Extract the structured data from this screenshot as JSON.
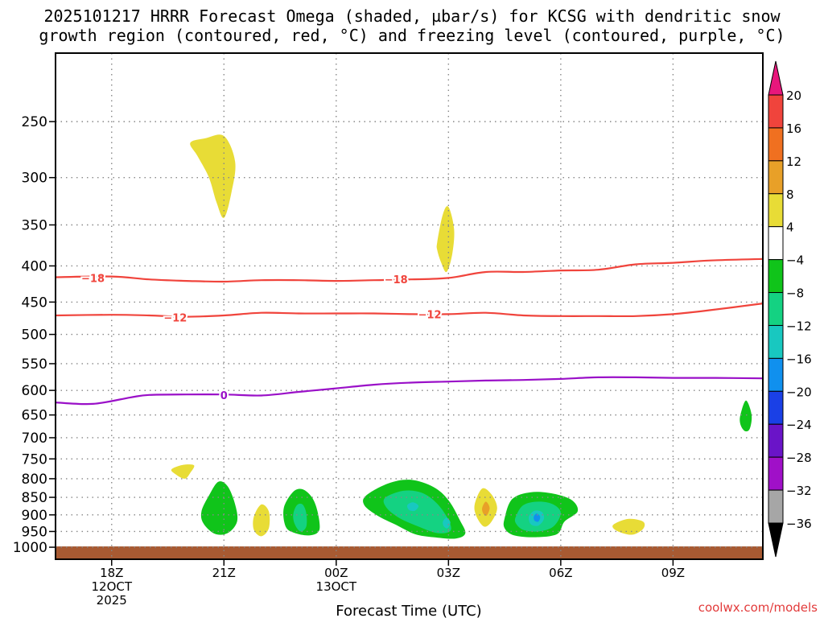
{
  "title_line1": "2025101217 HRRR Forecast Omega (shaded, µbar/s) for KCSG with dendritic snow",
  "title_line2": "growth region (contoured, red, °C) and freezing level (contoured, purple, °C)",
  "credit": "coolwx.com/models",
  "chart_data": {
    "type": "heatmap",
    "title": "2025101217 HRRR Forecast Omega (shaded, µbar/s) for KCSG with dendritic snow growth region (contoured, red, °C) and freezing level (contoured, purple, °C)",
    "xlabel": "Forecast Time (UTC)",
    "ylabel": "",
    "x_range_hours": [
      16.5,
      35.4
    ],
    "y_axis": "pressure (hPa), log scale, inverted",
    "y_range": [
      200,
      1040
    ],
    "grid": true,
    "y_ticks": [
      250,
      300,
      350,
      400,
      450,
      500,
      550,
      600,
      650,
      700,
      750,
      800,
      850,
      900,
      950,
      1000
    ],
    "x_ticks": [
      {
        "hour": 18,
        "lines": [
          "18Z",
          "12OCT",
          "2025"
        ]
      },
      {
        "hour": 21,
        "lines": [
          "21Z"
        ]
      },
      {
        "hour": 24,
        "lines": [
          "00Z",
          "13OCT"
        ]
      },
      {
        "hour": 27,
        "lines": [
          "03Z"
        ]
      },
      {
        "hour": 30,
        "lines": [
          "06Z"
        ]
      },
      {
        "hour": 33,
        "lines": [
          "09Z"
        ]
      }
    ],
    "colorbar": {
      "labels": [
        "20",
        "16",
        "12",
        "8",
        "4",
        "−4",
        "−8",
        "−12",
        "−16",
        "−20",
        "−24",
        "−28",
        "−32",
        "−36"
      ],
      "top_arrow_color": "#e8177c",
      "bins": [
        {
          "color": "#f0443c"
        },
        {
          "color": "#f07020"
        },
        {
          "color": "#e8a028"
        },
        {
          "color": "#e8dc36"
        },
        {
          "color": "#ffffff"
        },
        {
          "color": "#10c41a"
        },
        {
          "color": "#14d282"
        },
        {
          "color": "#18c8c0"
        },
        {
          "color": "#1090ee"
        },
        {
          "color": "#1a40e6"
        },
        {
          "color": "#6a14c8"
        },
        {
          "color": "#a010c8"
        },
        {
          "color": "#a6a6a6"
        }
      ],
      "bottom_arrow_color": "#000000"
    },
    "terrain": {
      "pressure": 1000,
      "color": "#a85a32"
    },
    "series": [
      {
        "name": "-18",
        "color": "#f0443c",
        "x": [
          16.5,
          18,
          19,
          20,
          21,
          22,
          23,
          24,
          25,
          26,
          27,
          28,
          29,
          30,
          31,
          32,
          33,
          34,
          35.4
        ],
        "y": [
          415,
          414,
          418,
          420,
          421,
          419,
          419,
          420,
          419,
          418,
          416,
          408,
          408,
          406,
          405,
          398,
          396,
          393,
          391
        ]
      },
      {
        "name": "-12",
        "color": "#f0443c",
        "x": [
          16.5,
          18,
          19,
          20,
          21,
          22,
          23,
          24,
          25,
          26,
          27,
          28,
          29,
          30,
          31,
          32,
          33,
          34,
          35.4
        ],
        "y": [
          470,
          469,
          470,
          472,
          470,
          466,
          467,
          467,
          467,
          468,
          468,
          466,
          470,
          471,
          471,
          471,
          468,
          462,
          452
        ]
      },
      {
        "name": "0",
        "color": "#9a10c8",
        "x": [
          16.5,
          17.5,
          18.5,
          19,
          20,
          21,
          22,
          23,
          24,
          25,
          26,
          27,
          28,
          29,
          30,
          31,
          32,
          33,
          34,
          35.4
        ],
        "y": [
          624,
          627,
          614,
          609,
          608,
          608,
          610,
          603,
          596,
          589,
          585,
          583,
          581,
          580,
          578,
          575,
          575,
          576,
          576,
          577
        ]
      }
    ],
    "contour_labels": [
      {
        "text": "−18",
        "x": 17.5,
        "y": 416,
        "color": "#f0443c"
      },
      {
        "text": "−18",
        "x": 25.6,
        "y": 418,
        "color": "#f0443c"
      },
      {
        "text": "−12",
        "x": 19.7,
        "y": 473,
        "color": "#f0443c"
      },
      {
        "text": "−12",
        "x": 26.5,
        "y": 468,
        "color": "#f0443c"
      },
      {
        "text": "0",
        "x": 21,
        "y": 609,
        "color": "#9a10c8"
      }
    ],
    "blobs": [
      {
        "name": "ascent-21z-300",
        "color": "#e8dc36",
        "pts": [
          [
            20.1,
            268
          ],
          [
            20.5,
            264
          ],
          [
            21.0,
            262
          ],
          [
            21.3,
            285
          ],
          [
            21.2,
            315
          ],
          [
            21.0,
            342
          ],
          [
            20.8,
            325
          ],
          [
            20.6,
            300
          ],
          [
            20.3,
            280
          ]
        ]
      },
      {
        "name": "ascent-03z-370",
        "color": "#e8dc36",
        "pts": [
          [
            26.7,
            370
          ],
          [
            26.85,
            338
          ],
          [
            27.0,
            330
          ],
          [
            27.15,
            355
          ],
          [
            27.1,
            385
          ],
          [
            26.95,
            408
          ],
          [
            26.8,
            395
          ],
          [
            26.7,
            380
          ]
        ]
      },
      {
        "name": "ascent-20z-780",
        "color": "#e8dc36",
        "pts": [
          [
            19.6,
            776
          ],
          [
            19.9,
            765
          ],
          [
            20.2,
            766
          ],
          [
            20.1,
            785
          ],
          [
            19.95,
            800
          ],
          [
            19.7,
            788
          ]
        ]
      },
      {
        "name": "ascent-2130z-925",
        "color": "#e8dc36",
        "pts": [
          [
            21.8,
            905
          ],
          [
            22.0,
            870
          ],
          [
            22.2,
            890
          ],
          [
            22.2,
            940
          ],
          [
            22.0,
            965
          ],
          [
            21.8,
            945
          ]
        ]
      },
      {
        "name": "ascent-04z-880",
        "color": "#e8dc36",
        "pts": [
          [
            27.7,
            870
          ],
          [
            27.9,
            826
          ],
          [
            28.15,
            842
          ],
          [
            28.3,
            880
          ],
          [
            28.15,
            920
          ],
          [
            27.95,
            935
          ],
          [
            27.75,
            905
          ]
        ]
      },
      {
        "name": "ascent-04z-880-core",
        "color": "#e8a028",
        "pts": [
          [
            27.9,
            880
          ],
          [
            28.0,
            862
          ],
          [
            28.1,
            880
          ],
          [
            28.02,
            902
          ],
          [
            27.93,
            896
          ]
        ]
      },
      {
        "name": "ascent-08z-935",
        "color": "#e8dc36",
        "pts": [
          [
            31.4,
            930
          ],
          [
            31.8,
            912
          ],
          [
            32.2,
            920
          ],
          [
            32.2,
            942
          ],
          [
            31.9,
            960
          ],
          [
            31.5,
            948
          ]
        ]
      },
      {
        "name": "descent-21z-880",
        "color": "#10c41a",
        "pts": [
          [
            20.4,
            890
          ],
          [
            20.6,
            845
          ],
          [
            20.85,
            808
          ],
          [
            21.1,
            820
          ],
          [
            21.3,
            870
          ],
          [
            21.35,
            920
          ],
          [
            21.1,
            955
          ],
          [
            20.75,
            957
          ],
          [
            20.45,
            925
          ]
        ]
      },
      {
        "name": "descent-2230z-900",
        "color": "#10c41a",
        "pts": [
          [
            22.6,
            880
          ],
          [
            22.85,
            835
          ],
          [
            23.1,
            828
          ],
          [
            23.35,
            850
          ],
          [
            23.5,
            890
          ],
          [
            23.55,
            945
          ],
          [
            23.3,
            962
          ],
          [
            22.9,
            955
          ],
          [
            22.65,
            935
          ]
        ]
      },
      {
        "name": "descent-2230z-900-core",
        "color": "#14d282",
        "pts": [
          [
            22.85,
            900
          ],
          [
            22.95,
            872
          ],
          [
            23.1,
            870
          ],
          [
            23.2,
            895
          ],
          [
            23.2,
            935
          ],
          [
            23.05,
            950
          ],
          [
            22.9,
            930
          ]
        ]
      },
      {
        "name": "descent-02z-880",
        "color": "#10c41a",
        "pts": [
          [
            24.8,
            845
          ],
          [
            25.4,
            812
          ],
          [
            26.0,
            803
          ],
          [
            26.6,
            822
          ],
          [
            27.0,
            858
          ],
          [
            27.3,
            915
          ],
          [
            27.45,
            955
          ],
          [
            27.2,
            972
          ],
          [
            26.6,
            968
          ],
          [
            26.1,
            958
          ],
          [
            25.6,
            930
          ],
          [
            25.1,
            902
          ],
          [
            24.75,
            872
          ]
        ]
      },
      {
        "name": "descent-02z-880-core",
        "color": "#14d282",
        "pts": [
          [
            25.3,
            852
          ],
          [
            25.8,
            832
          ],
          [
            26.3,
            838
          ],
          [
            26.7,
            868
          ],
          [
            27.0,
            915
          ],
          [
            27.05,
            948
          ],
          [
            26.7,
            955
          ],
          [
            26.2,
            935
          ],
          [
            25.7,
            910
          ],
          [
            25.35,
            880
          ]
        ]
      },
      {
        "name": "descent-02z-880-cyan",
        "color": "#18c8c0",
        "pts": [
          [
            25.9,
            872
          ],
          [
            26.05,
            864
          ],
          [
            26.2,
            874
          ],
          [
            26.1,
            888
          ],
          [
            25.95,
            886
          ]
        ]
      },
      {
        "name": "descent-02z-880-cyan2",
        "color": "#18c8c0",
        "pts": [
          [
            26.85,
            920
          ],
          [
            26.95,
            908
          ],
          [
            27.05,
            922
          ],
          [
            26.98,
            940
          ],
          [
            26.88,
            935
          ]
        ]
      },
      {
        "name": "descent-05z-900",
        "color": "#10c41a",
        "pts": [
          [
            28.5,
            910
          ],
          [
            28.7,
            855
          ],
          [
            29.2,
            836
          ],
          [
            29.8,
            840
          ],
          [
            30.3,
            858
          ],
          [
            30.45,
            890
          ],
          [
            30.1,
            920
          ],
          [
            29.9,
            958
          ],
          [
            29.3,
            968
          ],
          [
            28.75,
            962
          ],
          [
            28.5,
            940
          ]
        ]
      },
      {
        "name": "descent-05z-900-core",
        "color": "#14d282",
        "pts": [
          [
            28.8,
            905
          ],
          [
            29.0,
            872
          ],
          [
            29.4,
            862
          ],
          [
            29.8,
            870
          ],
          [
            30.0,
            895
          ],
          [
            29.8,
            935
          ],
          [
            29.4,
            950
          ],
          [
            29.0,
            945
          ],
          [
            28.8,
            925
          ]
        ]
      },
      {
        "name": "descent-05z-900-cyan",
        "color": "#18c8c0",
        "pts": [
          [
            29.15,
            905
          ],
          [
            29.3,
            888
          ],
          [
            29.5,
            892
          ],
          [
            29.55,
            912
          ],
          [
            29.4,
            932
          ],
          [
            29.2,
            928
          ]
        ]
      },
      {
        "name": "descent-05z-900-blue",
        "color": "#1090ee",
        "pts": [
          [
            29.28,
            905
          ],
          [
            29.36,
            896
          ],
          [
            29.45,
            906
          ],
          [
            29.4,
            920
          ],
          [
            29.3,
            917
          ]
        ]
      },
      {
        "name": "descent-10z-660",
        "color": "#10c41a",
        "pts": [
          [
            34.8,
            650
          ],
          [
            34.95,
            620
          ],
          [
            35.1,
            650
          ],
          [
            35.05,
            680
          ],
          [
            34.92,
            685
          ],
          [
            34.8,
            670
          ]
        ]
      }
    ]
  }
}
